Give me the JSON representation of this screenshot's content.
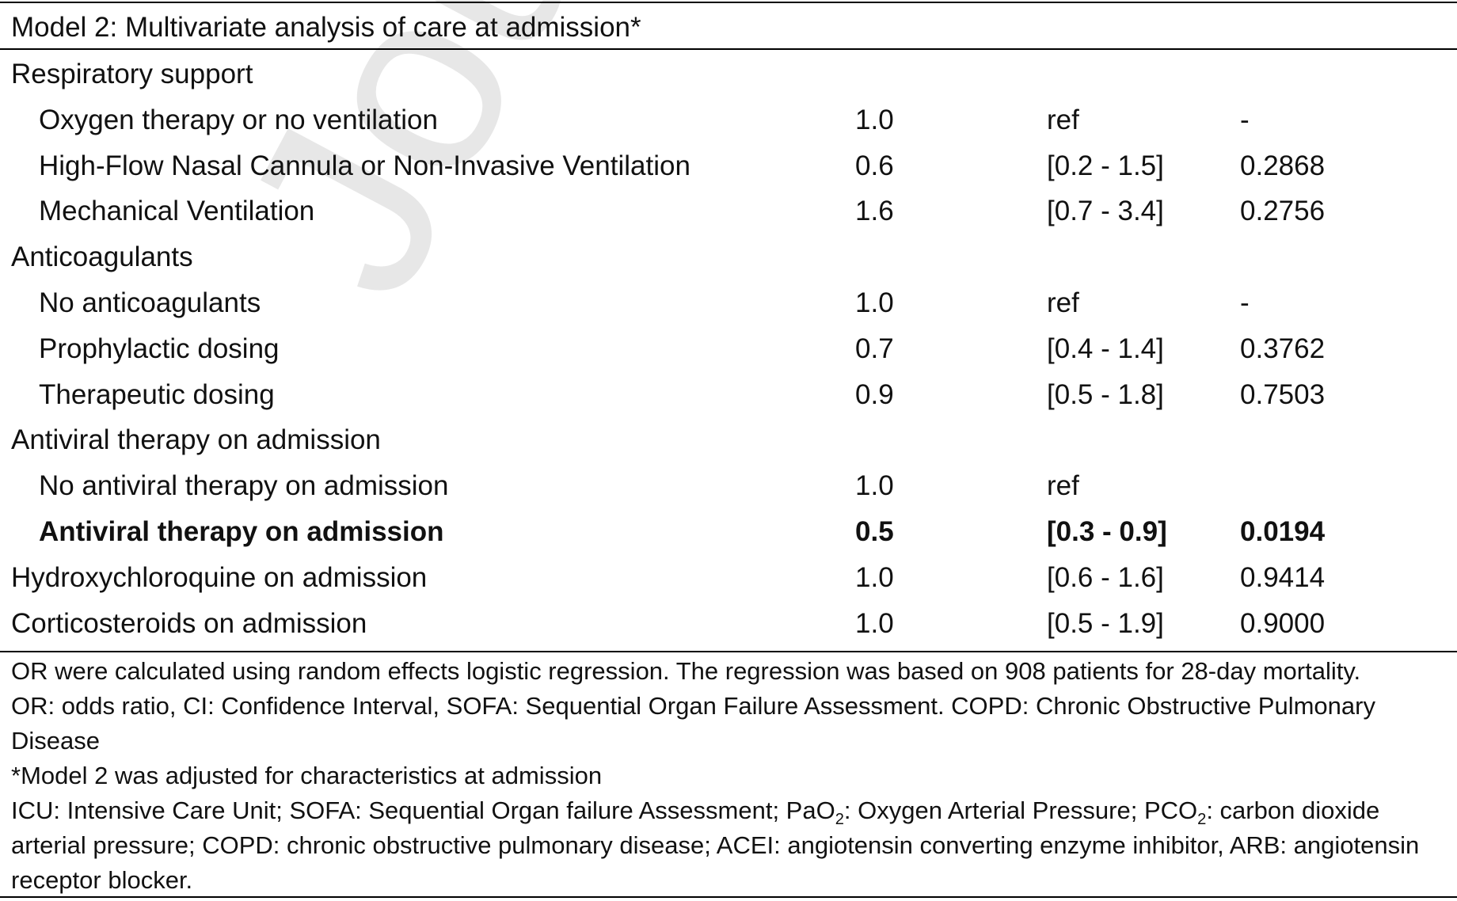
{
  "watermark": "Journal",
  "table": {
    "title": "Model 2: Multivariate analysis of care at admission*",
    "rows": [
      {
        "label": "Respiratory support",
        "indent": false,
        "bold": false,
        "or": "",
        "ci": "",
        "p": ""
      },
      {
        "label": "Oxygen therapy or no ventilation",
        "indent": true,
        "bold": false,
        "or": "1.0",
        "ci": "ref",
        "p": "-"
      },
      {
        "label": "High-Flow Nasal Cannula or Non-Invasive Ventilation",
        "indent": true,
        "bold": false,
        "or": "0.6",
        "ci": "[0.2 - 1.5]",
        "p": "0.2868"
      },
      {
        "label": "Mechanical Ventilation",
        "indent": true,
        "bold": false,
        "or": "1.6",
        "ci": "[0.7 - 3.4]",
        "p": "0.2756"
      },
      {
        "label": "Anticoagulants",
        "indent": false,
        "bold": false,
        "or": "",
        "ci": "",
        "p": ""
      },
      {
        "label": "No anticoagulants",
        "indent": true,
        "bold": false,
        "or": "1.0",
        "ci": "ref",
        "p": "-"
      },
      {
        "label": "Prophylactic dosing",
        "indent": true,
        "bold": false,
        "or": "0.7",
        "ci": "[0.4 - 1.4]",
        "p": "0.3762"
      },
      {
        "label": "Therapeutic dosing",
        "indent": true,
        "bold": false,
        "or": "0.9",
        "ci": "[0.5 - 1.8]",
        "p": "0.7503"
      },
      {
        "label": "Antiviral therapy on admission",
        "indent": false,
        "bold": false,
        "or": "",
        "ci": "",
        "p": ""
      },
      {
        "label": "No antiviral therapy on admission",
        "indent": true,
        "bold": false,
        "or": "1.0",
        "ci": "ref",
        "p": ""
      },
      {
        "label": "Antiviral therapy on admission",
        "indent": true,
        "bold": true,
        "or": "0.5",
        "ci": "[0.3 - 0.9]",
        "p": "0.0194"
      },
      {
        "label": "Hydroxychloroquine on admission",
        "indent": false,
        "bold": false,
        "or": "1.0",
        "ci": "[0.6 - 1.6]",
        "p": "0.9414"
      },
      {
        "label": "Corticosteroids on admission",
        "indent": false,
        "bold": false,
        "or": "1.0",
        "ci": "[0.5 - 1.9]",
        "p": "0.9000"
      }
    ]
  },
  "footnotes": {
    "line1": "OR were calculated using random effects logistic regression. The regression was based on 908 patients for 28-day mortality.",
    "line2": "OR: odds ratio, CI: Confidence Interval, SOFA: Sequential Organ Failure Assessment. COPD: Chronic Obstructive Pulmonary Disease",
    "line3": "*Model 2 was adjusted for characteristics at admission",
    "line4_a": "ICU: Intensive Care Unit; SOFA: Sequential Organ failure Assessment; PaO",
    "line4_sub1": "2",
    "line4_b": ": Oxygen Arterial Pressure; PCO",
    "line4_sub2": "2",
    "line4_c": ": carbon dioxide arterial pressure; COPD: chronic obstructive pulmonary disease; ACEI: angiotensin converting enzyme inhibitor, ARB: angiotensin receptor blocker."
  }
}
